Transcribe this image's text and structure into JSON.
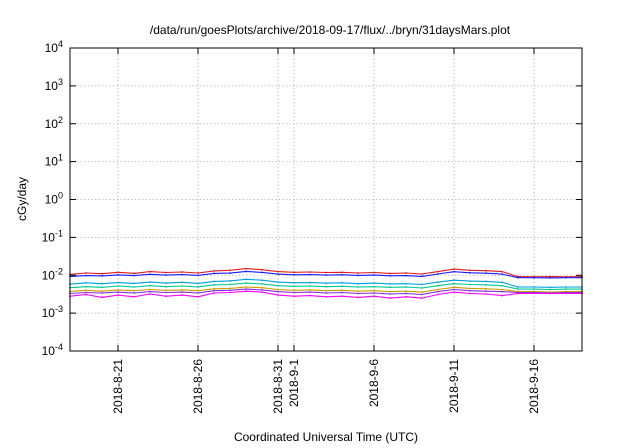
{
  "chart_data": {
    "type": "line",
    "title": "/data/run/goesPlots/archive/2018-09-17/flux/../bryn/31daysMars.plot",
    "xlabel": "Coordinated Universal Time (UTC)",
    "ylabel": "cGy/day",
    "yscale": "log",
    "ylim": [
      0.0001,
      10000
    ],
    "xlim": [
      "2018-08-18",
      "2018-09-19"
    ],
    "grid": true,
    "y_ticks": [
      {
        "value": 0.0001,
        "base": "10",
        "exp": "-4"
      },
      {
        "value": 0.001,
        "base": "10",
        "exp": "-3"
      },
      {
        "value": 0.01,
        "base": "10",
        "exp": "-2"
      },
      {
        "value": 0.1,
        "base": "10",
        "exp": "-1"
      },
      {
        "value": 1,
        "base": "10",
        "exp": "0"
      },
      {
        "value": 10,
        "base": "10",
        "exp": "1"
      },
      {
        "value": 100,
        "base": "10",
        "exp": "2"
      },
      {
        "value": 1000,
        "base": "10",
        "exp": "3"
      },
      {
        "value": 10000,
        "base": "10",
        "exp": "4"
      }
    ],
    "x_ticks": [
      "2018-8-21",
      "2018-8-26",
      "2018-8-31",
      "2018-9-1",
      "2018-9-6",
      "2018-9-11",
      "2018-9-16"
    ],
    "x_tick_dates": [
      "2018-08-21",
      "2018-08-26",
      "2018-08-31",
      "2018-09-01",
      "2018-09-06",
      "2018-09-11",
      "2018-09-16"
    ],
    "x": [
      "2018-08-18",
      "2018-08-19",
      "2018-08-20",
      "2018-08-21",
      "2018-08-22",
      "2018-08-23",
      "2018-08-24",
      "2018-08-25",
      "2018-08-26",
      "2018-08-27",
      "2018-08-28",
      "2018-08-29",
      "2018-08-30",
      "2018-08-31",
      "2018-09-01",
      "2018-09-02",
      "2018-09-03",
      "2018-09-04",
      "2018-09-05",
      "2018-09-06",
      "2018-09-07",
      "2018-09-08",
      "2018-09-09",
      "2018-09-10",
      "2018-09-11",
      "2018-09-12",
      "2018-09-13",
      "2018-09-14",
      "2018-09-15",
      "2018-09-16",
      "2018-09-17",
      "2018-09-18",
      "2018-09-19"
    ],
    "series": [
      {
        "color": "#e41a1c",
        "values": [
          0.0105,
          0.0115,
          0.011,
          0.012,
          0.0112,
          0.0125,
          0.0118,
          0.0122,
          0.0115,
          0.013,
          0.0135,
          0.015,
          0.014,
          0.0125,
          0.012,
          0.0122,
          0.0118,
          0.012,
          0.0115,
          0.0118,
          0.0112,
          0.0115,
          0.0108,
          0.0125,
          0.0145,
          0.0135,
          0.0132,
          0.0125,
          0.0092,
          0.0091,
          0.0092,
          0.0091,
          0.0092
        ]
      },
      {
        "color": "#1a1aff",
        "values": [
          0.0092,
          0.0098,
          0.0096,
          0.0102,
          0.0098,
          0.0106,
          0.0101,
          0.0104,
          0.0099,
          0.0112,
          0.0114,
          0.0126,
          0.0119,
          0.0107,
          0.0103,
          0.0104,
          0.0101,
          0.0103,
          0.0099,
          0.0101,
          0.0097,
          0.0098,
          0.0093,
          0.0108,
          0.0124,
          0.0116,
          0.0113,
          0.0107,
          0.0086,
          0.0086,
          0.0085,
          0.0086,
          0.0086
        ]
      },
      {
        "color": "#00a0e0",
        "values": [
          0.0058,
          0.0063,
          0.006,
          0.0064,
          0.0061,
          0.0066,
          0.0062,
          0.0065,
          0.0061,
          0.0069,
          0.0071,
          0.0078,
          0.0074,
          0.0066,
          0.0063,
          0.0064,
          0.0062,
          0.0063,
          0.006,
          0.0062,
          0.0059,
          0.006,
          0.0057,
          0.0066,
          0.0074,
          0.007,
          0.0069,
          0.0065,
          0.0049,
          0.0049,
          0.0048,
          0.0049,
          0.0049
        ]
      },
      {
        "color": "#00c890",
        "values": [
          0.0047,
          0.005,
          0.0048,
          0.0052,
          0.0049,
          0.0053,
          0.005,
          0.0052,
          0.0049,
          0.0056,
          0.0057,
          0.0062,
          0.0059,
          0.0053,
          0.0051,
          0.0052,
          0.005,
          0.0051,
          0.0049,
          0.005,
          0.0048,
          0.0049,
          0.0046,
          0.0053,
          0.006,
          0.0057,
          0.0056,
          0.0053,
          0.0043,
          0.0043,
          0.0042,
          0.0043,
          0.0043
        ]
      },
      {
        "color": "#c8a000",
        "values": [
          0.0037,
          0.004,
          0.0038,
          0.0041,
          0.0039,
          0.0042,
          0.004,
          0.0041,
          0.0039,
          0.0044,
          0.0045,
          0.0049,
          0.0047,
          0.0042,
          0.004,
          0.0041,
          0.0039,
          0.004,
          0.0038,
          0.0039,
          0.0037,
          0.0038,
          0.0036,
          0.0042,
          0.0048,
          0.0045,
          0.0044,
          0.0042,
          0.0037,
          0.0037,
          0.0036,
          0.0037,
          0.0037
        ]
      },
      {
        "color": "#8a2be2",
        "values": [
          0.0033,
          0.0035,
          0.0034,
          0.0036,
          0.0034,
          0.0037,
          0.0035,
          0.0036,
          0.0034,
          0.0039,
          0.004,
          0.0043,
          0.0041,
          0.0037,
          0.0035,
          0.0036,
          0.0034,
          0.0035,
          0.0033,
          0.0034,
          0.0032,
          0.0033,
          0.0031,
          0.0037,
          0.0042,
          0.0039,
          0.0038,
          0.0037,
          0.0035,
          0.0035,
          0.0034,
          0.0035,
          0.0035
        ]
      },
      {
        "color": "#ff00ff",
        "values": [
          0.0028,
          0.0031,
          0.0026,
          0.003,
          0.0027,
          0.0032,
          0.0028,
          0.003,
          0.0027,
          0.0034,
          0.0035,
          0.0038,
          0.0036,
          0.003,
          0.0028,
          0.0029,
          0.0027,
          0.0028,
          0.0026,
          0.0028,
          0.0025,
          0.0027,
          0.0025,
          0.0031,
          0.0036,
          0.0033,
          0.0032,
          0.0029,
          0.0033,
          0.0033,
          0.0033,
          0.0033,
          0.0033
        ]
      }
    ]
  }
}
